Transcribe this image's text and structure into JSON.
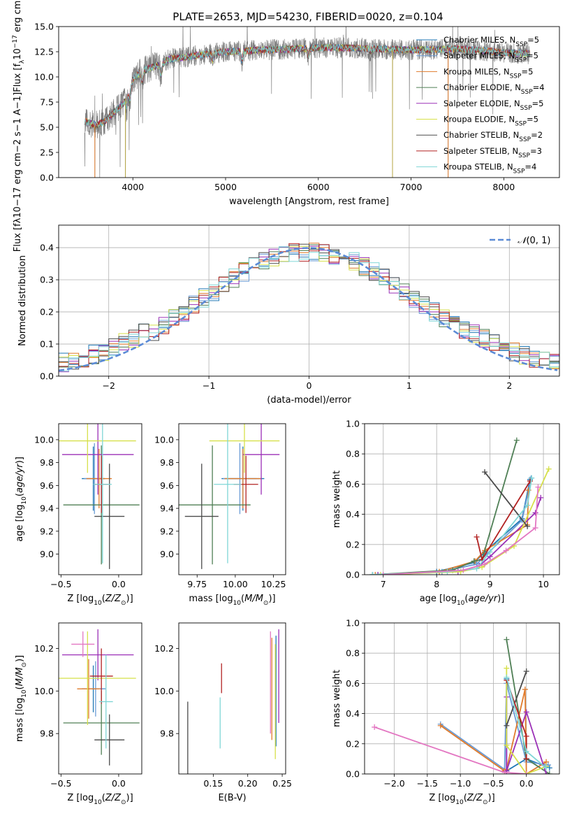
{
  "figure_title": "PLATE=2653, MJD=54230, FIBERID=0020, z=0.104",
  "series": [
    {
      "name": "Chabrier MILES",
      "n": "5",
      "color": "#1f77b4"
    },
    {
      "name": "Salpeter MILES",
      "n": "5",
      "color": "#6a9cd6"
    },
    {
      "name": "Kroupa MILES",
      "n": "5",
      "color": "#e07b2c"
    },
    {
      "name": "Chabrier ELODIE",
      "n": "4",
      "color": "#4f7f55"
    },
    {
      "name": "Salpeter ELODIE",
      "n": "5",
      "color": "#9b30b7"
    },
    {
      "name": "Kroupa ELODIE",
      "n": "5",
      "color": "#d6e04a"
    },
    {
      "name": "Chabrier STELIB",
      "n": "2",
      "color": "#4b4b4b"
    },
    {
      "name": "Salpeter STELIB",
      "n": "3",
      "color": "#b22222"
    },
    {
      "name": "Kroupa STELIB",
      "n": "4",
      "color": "#7fd6d6"
    }
  ],
  "legend_n_prefix": "N",
  "legend_n_sub": "SSP",
  "chart_data": [
    {
      "id": "spectrum",
      "type": "line",
      "xlabel": "wavelength [Angstrom, rest frame]",
      "ylabel_parts": [
        "Flux [f",
        "λ",
        "10",
        "−17",
        " erg cm",
        "−2",
        " s",
        "−1",
        " A",
        "−1",
        "]"
      ],
      "xlim": [
        3200,
        8600
      ],
      "ylim": [
        0,
        15
      ],
      "xticks": [
        4000,
        5000,
        6000,
        7000,
        8000
      ],
      "yticks": [
        0.0,
        2.5,
        5.0,
        7.5,
        10.0,
        12.5,
        15.0
      ],
      "data_color": "#808080",
      "x_range": [
        3480,
        8280
      ],
      "continuum": [
        [
          3480,
          5.6
        ],
        [
          3600,
          5.2
        ],
        [
          3700,
          5.6
        ],
        [
          3800,
          6.5
        ],
        [
          3900,
          7.4
        ],
        [
          3960,
          8.8
        ],
        [
          4000,
          9.8
        ],
        [
          4100,
          10.6
        ],
        [
          4200,
          10.9
        ],
        [
          4300,
          11.3
        ],
        [
          4400,
          11.8
        ],
        [
          4600,
          12.0
        ],
        [
          4800,
          12.3
        ],
        [
          5000,
          12.5
        ],
        [
          5200,
          12.6
        ],
        [
          5500,
          12.7
        ],
        [
          5800,
          12.8
        ],
        [
          6000,
          12.9
        ],
        [
          6300,
          12.9
        ],
        [
          6600,
          12.8
        ],
        [
          6900,
          12.7
        ],
        [
          7200,
          12.7
        ],
        [
          7500,
          12.8
        ],
        [
          7800,
          12.6
        ],
        [
          8000,
          12.4
        ],
        [
          8280,
          12.3
        ]
      ],
      "absorption_features": [
        [
          3934,
          7.0
        ],
        [
          3969,
          7.5
        ],
        [
          4102,
          9.4
        ],
        [
          4304,
          10.1
        ],
        [
          4861,
          11.6
        ],
        [
          5175,
          11.5
        ],
        [
          5895,
          12.0
        ],
        [
          6563,
          12.5
        ]
      ],
      "spikes_to_zero": [
        3590,
        3920,
        6800,
        7400
      ]
    },
    {
      "id": "residuals",
      "type": "histogram",
      "xlabel": "(data-model)/error",
      "ylabel": "Normed distribution",
      "xlim": [
        -2.5,
        2.5
      ],
      "ylim": [
        0,
        0.47
      ],
      "xticks": [
        -2,
        -1,
        0,
        1,
        2
      ],
      "yticks": [
        0.0,
        0.1,
        0.2,
        0.3,
        0.4
      ],
      "bin_width": 0.1,
      "grid": true,
      "reference_curve": {
        "label_prefix": "𝒩",
        "label_args": "(0, 1)",
        "mean": 0,
        "sigma": 1,
        "color": "#5b8bd6",
        "style": "dashed"
      },
      "legend_position": "upper right"
    },
    {
      "id": "age_vs_Z",
      "type": "scatter-errorbar",
      "xlabel_parts": [
        "Z [log",
        "10",
        "(Z/Z",
        "⊙",
        ")]"
      ],
      "ylabel_parts": [
        "age  [log",
        "10",
        "(age/yr)]"
      ],
      "xlim": [
        -0.52,
        0.2
      ],
      "ylim": [
        8.82,
        10.14
      ],
      "xticks": [
        -0.5,
        0.0
      ],
      "yticks": [
        9.0,
        9.2,
        9.4,
        9.6,
        9.8,
        10.0
      ],
      "points": [
        {
          "s": 0,
          "x": -0.22,
          "xe": 0.1,
          "y": 9.66,
          "ye": 0.28
        },
        {
          "s": 1,
          "x": -0.21,
          "xe": 0.09,
          "y": 9.66,
          "ye": 0.31
        },
        {
          "s": 2,
          "x": -0.17,
          "xe": 0.11,
          "y": 9.66,
          "ye": 0.26
        },
        {
          "s": 3,
          "x": -0.15,
          "xe": 0.33,
          "y": 9.43,
          "ye": 0.52
        },
        {
          "s": 4,
          "x": -0.18,
          "xe": 0.31,
          "y": 9.87,
          "ye": 0.35
        },
        {
          "s": 5,
          "x": -0.27,
          "xe": 0.42,
          "y": 9.99,
          "ye": 0.28
        },
        {
          "s": 6,
          "x": -0.08,
          "xe": 0.13,
          "y": 9.33,
          "ye": 0.46
        },
        {
          "s": 7,
          "x": -0.15,
          "xe": 0.06,
          "y": 9.61,
          "ye": 0.25
        },
        {
          "s": 8,
          "x": -0.14,
          "xe": 0.08,
          "y": 9.61,
          "ye": 0.69
        }
      ]
    },
    {
      "id": "age_vs_mass",
      "type": "scatter-errorbar",
      "xlabel_parts": [
        "mass [log",
        "10",
        "(M/M",
        "⊙",
        ")]"
      ],
      "ylabel_parts": [],
      "xlim": [
        9.63,
        10.33
      ],
      "ylim": [
        8.82,
        10.14
      ],
      "xticks": [
        9.75,
        10.0,
        10.25
      ],
      "yticks": [
        9.0,
        9.2,
        9.4,
        9.6,
        9.8,
        10.0
      ],
      "points": [
        {
          "s": 0,
          "x": 10.05,
          "xe": 0.14,
          "y": 9.66,
          "ye": 0.28
        },
        {
          "s": 1,
          "x": 10.03,
          "xe": 0.11,
          "y": 9.66,
          "ye": 0.31
        },
        {
          "s": 2,
          "x": 10.05,
          "xe": 0.12,
          "y": 9.66,
          "ye": 0.26
        },
        {
          "s": 3,
          "x": 9.85,
          "xe": 0.25,
          "y": 9.43,
          "ye": 0.52
        },
        {
          "s": 4,
          "x": 10.17,
          "xe": 0.12,
          "y": 9.87,
          "ye": 0.35
        },
        {
          "s": 5,
          "x": 10.06,
          "xe": 0.23,
          "y": 9.99,
          "ye": 0.28
        },
        {
          "s": 6,
          "x": 9.78,
          "xe": 0.11,
          "y": 9.33,
          "ye": 0.46
        },
        {
          "s": 7,
          "x": 10.07,
          "xe": 0.08,
          "y": 9.61,
          "ye": 0.25
        },
        {
          "s": 8,
          "x": 9.95,
          "xe": 0.09,
          "y": 9.61,
          "ye": 0.69
        }
      ]
    },
    {
      "id": "weight_vs_age",
      "type": "line",
      "xlabel_parts": [
        "age  [log",
        "10",
        "(age/yr)]"
      ],
      "ylabel": "mass weight",
      "xlim": [
        6.65,
        10.3
      ],
      "ylim": [
        0,
        1.0
      ],
      "xticks": [
        7,
        8,
        9,
        10
      ],
      "yticks": [
        0.0,
        0.2,
        0.4,
        0.6,
        0.8,
        1.0
      ],
      "grid": true,
      "lines": [
        {
          "s": 0,
          "pts": [
            [
              6.8,
              0
            ],
            [
              8.0,
              0.02
            ],
            [
              8.7,
              0.08
            ],
            [
              8.9,
              0.15
            ],
            [
              9.6,
              0.37
            ],
            [
              9.75,
              0.63
            ]
          ]
        },
        {
          "s": 1,
          "pts": [
            [
              6.9,
              0
            ],
            [
              8.1,
              0.02
            ],
            [
              8.75,
              0.07
            ],
            [
              8.95,
              0.14
            ],
            [
              9.6,
              0.36
            ],
            [
              9.77,
              0.64
            ]
          ]
        },
        {
          "s": 2,
          "pts": [
            [
              6.85,
              0
            ],
            [
              8.05,
              0.02
            ],
            [
              8.72,
              0.09
            ],
            [
              8.9,
              0.16
            ],
            [
              9.7,
              0.33
            ],
            [
              9.72,
              0.56
            ]
          ]
        },
        {
          "s": 3,
          "pts": [
            [
              6.8,
              0
            ],
            [
              8.3,
              0.03
            ],
            [
              8.7,
              0.09
            ],
            [
              8.85,
              0.1
            ],
            [
              9.5,
              0.89
            ]
          ]
        },
        {
          "s": 4,
          "pts": [
            [
              6.9,
              0
            ],
            [
              8.4,
              0.02
            ],
            [
              8.8,
              0.06
            ],
            [
              9.0,
              0.12
            ],
            [
              9.85,
              0.41
            ],
            [
              9.95,
              0.51
            ]
          ]
        },
        {
          "s": 5,
          "pts": [
            [
              6.95,
              0
            ],
            [
              8.45,
              0.02
            ],
            [
              8.85,
              0.05
            ],
            [
              9.45,
              0.19
            ],
            [
              10.1,
              0.7
            ]
          ]
        },
        {
          "s": 6,
          "pts": [
            [
              8.9,
              0.68
            ],
            [
              9.7,
              0.32
            ]
          ]
        },
        {
          "s": 7,
          "pts": [
            [
              8.75,
              0.25
            ],
            [
              8.85,
              0.1
            ],
            [
              9.75,
              0.62
            ]
          ]
        },
        {
          "s": 8,
          "pts": [
            [
              6.8,
              0
            ],
            [
              8.2,
              0.02
            ],
            [
              8.75,
              0.04
            ],
            [
              9.0,
              0.15
            ],
            [
              9.7,
              0.46
            ],
            [
              9.78,
              0.64
            ]
          ]
        },
        {
          "s": 9,
          "pts": [
            [
              7.0,
              0
            ],
            [
              8.5,
              0.03
            ],
            [
              8.9,
              0.07
            ],
            [
              9.3,
              0.16
            ],
            [
              9.85,
              0.31
            ],
            [
              9.9,
              0.58
            ]
          ]
        }
      ]
    },
    {
      "id": "mass_vs_Z",
      "type": "scatter-errorbar",
      "xlabel_parts": [
        "Z [log",
        "10",
        "(Z/Z",
        "⊙",
        ")]"
      ],
      "ylabel_parts": [
        "mass [log",
        "10",
        "(M/M",
        "⊙",
        ")]"
      ],
      "xlim": [
        -0.52,
        0.2
      ],
      "ylim": [
        9.61,
        10.32
      ],
      "xticks": [
        -0.5,
        0.0
      ],
      "yticks": [
        9.8,
        10.0,
        10.2
      ],
      "points": [
        {
          "s": 0,
          "x": -0.22,
          "xe": 0.1,
          "y": 10.01,
          "ye": 0.11
        },
        {
          "s": 1,
          "x": -0.2,
          "xe": 0.09,
          "y": 10.01,
          "ye": 0.13
        },
        {
          "s": 2,
          "x": -0.26,
          "xe": 0.1,
          "y": 10.01,
          "ye": 0.14
        },
        {
          "s": 3,
          "x": -0.15,
          "xe": 0.33,
          "y": 9.85,
          "ye": 0.15
        },
        {
          "s": 4,
          "x": -0.18,
          "xe": 0.31,
          "y": 10.17,
          "ye": 0.12
        },
        {
          "s": 5,
          "x": -0.27,
          "xe": 0.42,
          "y": 10.06,
          "ye": 0.22
        },
        {
          "s": 6,
          "x": -0.08,
          "xe": 0.13,
          "y": 9.77,
          "ye": 0.12
        },
        {
          "s": 7,
          "x": -0.15,
          "xe": 0.1,
          "y": 10.07,
          "ye": 0.13
        },
        {
          "s": 8,
          "x": -0.11,
          "xe": 0.06,
          "y": 9.95,
          "ye": 0.22
        },
        {
          "s": 9,
          "x": -0.31,
          "xe": 0.1,
          "y": 10.22,
          "ye": 0.06
        }
      ]
    },
    {
      "id": "mass_vs_EBV",
      "type": "scatter-errorbar",
      "xlabel": "E(B-V)",
      "ylabel_parts": [],
      "xlim": [
        0.1,
        0.255
      ],
      "ylim": [
        9.61,
        10.32
      ],
      "xticks": [
        0.15,
        0.2,
        0.25
      ],
      "yticks": [
        9.8,
        10.0,
        10.2
      ],
      "points": [
        {
          "s": 0,
          "x": 0.241,
          "xe": 0,
          "y": 10.0,
          "ye": 0.26
        },
        {
          "s": 2,
          "x": 0.235,
          "xe": 0,
          "y": 10.01,
          "ye": 0.24
        },
        {
          "s": 4,
          "x": 0.245,
          "xe": 0,
          "y": 10.07,
          "ye": 0.22
        },
        {
          "s": 5,
          "x": 0.24,
          "xe": 0,
          "y": 9.95,
          "ye": 0.27
        },
        {
          "s": 6,
          "x": 0.113,
          "xe": 0,
          "y": 9.78,
          "ye": 0.17
        },
        {
          "s": 7,
          "x": 0.162,
          "xe": 0,
          "y": 10.06,
          "ye": 0.07
        },
        {
          "s": 8,
          "x": 0.16,
          "xe": 0,
          "y": 9.85,
          "ye": 0.12
        },
        {
          "s": 9,
          "x": 0.233,
          "xe": 0,
          "y": 10.04,
          "ye": 0.24
        }
      ]
    },
    {
      "id": "weight_vs_Z",
      "type": "line",
      "xlabel_parts": [
        "Z [log",
        "10",
        "(Z/Z",
        "⊙",
        ")]"
      ],
      "ylabel": "mass weight",
      "xlim": [
        -2.45,
        0.5
      ],
      "ylim": [
        0,
        1.0
      ],
      "xticks": [
        -2.0,
        -1.5,
        -1.0,
        -0.5,
        0.0
      ],
      "yticks": [
        0.0,
        0.2,
        0.4,
        0.6,
        0.8,
        1.0
      ],
      "grid": true,
      "lines": [
        {
          "s": 0,
          "pts": [
            [
              -0.3,
              0.63
            ],
            [
              -0.3,
              0.02
            ],
            [
              0.0,
              0.1
            ],
            [
              0.35,
              0.04
            ]
          ]
        },
        {
          "s": 1,
          "pts": [
            [
              -1.3,
              0.33
            ],
            [
              -0.33,
              0.03
            ],
            [
              -0.3,
              0.6
            ],
            [
              0.0,
              0.08
            ],
            [
              0.33,
              0.06
            ]
          ]
        },
        {
          "s": 2,
          "pts": [
            [
              -1.3,
              0.32
            ],
            [
              -0.33,
              0.02
            ],
            [
              -0.3,
              0.03
            ],
            [
              -0.02,
              0.56
            ],
            [
              0.0,
              0.0
            ],
            [
              0.3,
              0.08
            ]
          ]
        },
        {
          "s": 3,
          "pts": [
            [
              -0.3,
              0.89
            ],
            [
              0.0,
              0.1
            ],
            [
              0.35,
              0.0
            ]
          ]
        },
        {
          "s": 4,
          "pts": [
            [
              -0.3,
              0.51
            ],
            [
              -0.3,
              0.02
            ],
            [
              0.0,
              0.41
            ],
            [
              0.3,
              0.0
            ]
          ]
        },
        {
          "s": 5,
          "pts": [
            [
              -0.3,
              0.7
            ],
            [
              -0.3,
              0.19
            ],
            [
              0.0,
              0.0
            ],
            [
              0.3,
              0.05
            ]
          ]
        },
        {
          "s": 6,
          "pts": [
            [
              -0.3,
              0.32
            ],
            [
              0.0,
              0.68
            ]
          ]
        },
        {
          "s": 7,
          "pts": [
            [
              -0.3,
              0.62
            ],
            [
              0.0,
              0.25
            ],
            [
              0.0,
              0.1
            ]
          ]
        },
        {
          "s": 8,
          "pts": [
            [
              -0.3,
              0.64
            ],
            [
              0.0,
              0.15
            ],
            [
              0.3,
              0.04
            ]
          ]
        },
        {
          "s": 9,
          "pts": [
            [
              -2.3,
              0.31
            ],
            [
              -0.33,
              0.01
            ],
            [
              0.0,
              0.0
            ]
          ]
        }
      ]
    }
  ]
}
